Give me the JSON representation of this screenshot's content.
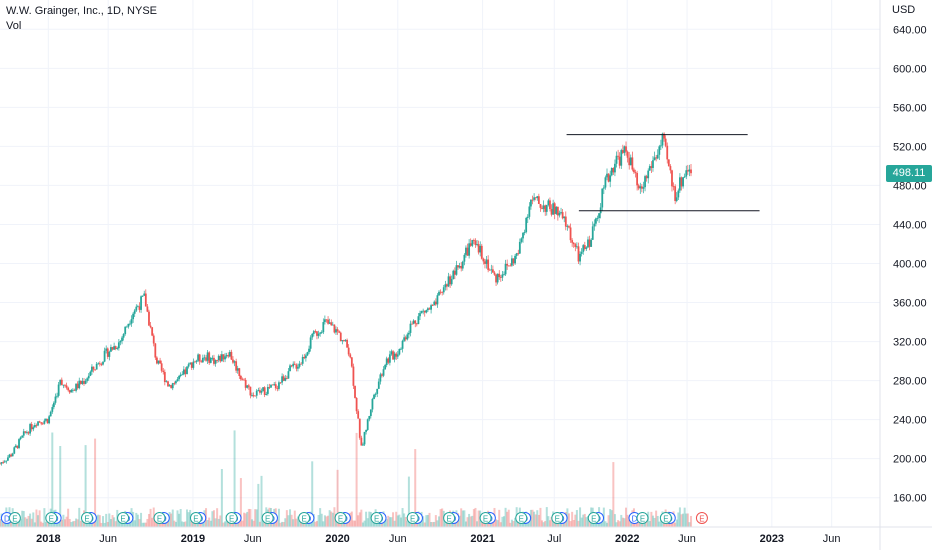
{
  "legend": {
    "symbol": "W.W. Grainger, Inc., 1D, NYSE",
    "volume_label": "Vol"
  },
  "price_axis": {
    "currency": "USD",
    "last_price": "498.11",
    "last_price_color": "#26a69a"
  },
  "colors": {
    "up": "#26a69a",
    "down": "#ef5350",
    "grid": "#f0f3fa",
    "text": "#131722"
  },
  "chart_data": {
    "type": "candlestick",
    "y_ticks": [
      160,
      200,
      240,
      280,
      320,
      360,
      400,
      440,
      480,
      520,
      560,
      600,
      640
    ],
    "y_tick_labels": [
      "160.00",
      "200.00",
      "240.00",
      "280.00",
      "320.00",
      "360.00",
      "400.00",
      "440.00",
      "480.00",
      "520.00",
      "560.00",
      "600.00",
      "640.00"
    ],
    "ylim": [
      130,
      670
    ],
    "x_ticks": [
      {
        "label": "2018",
        "date": "2018-01"
      },
      {
        "label": "Jun",
        "date": "2018-06"
      },
      {
        "label": "2019",
        "date": "2019-01"
      },
      {
        "label": "Jun",
        "date": "2019-06"
      },
      {
        "label": "2020",
        "date": "2020-01"
      },
      {
        "label": "Jun",
        "date": "2020-06"
      },
      {
        "label": "2021",
        "date": "2021-01"
      },
      {
        "label": "Jul",
        "date": "2021-07"
      },
      {
        "label": "2022",
        "date": "2022-01"
      },
      {
        "label": "Jun",
        "date": "2022-06"
      },
      {
        "label": "2023",
        "date": "2023-01"
      },
      {
        "label": "Jun",
        "date": "2023-06"
      }
    ],
    "price_path": [
      [
        "2017-09",
        195
      ],
      [
        "2017-10",
        205
      ],
      [
        "2017-11",
        225
      ],
      [
        "2017-12",
        238
      ],
      [
        "2018-01",
        240
      ],
      [
        "2018-02",
        280
      ],
      [
        "2018-03",
        270
      ],
      [
        "2018-04",
        280
      ],
      [
        "2018-05",
        295
      ],
      [
        "2018-06",
        310
      ],
      [
        "2018-07",
        320
      ],
      [
        "2018-08",
        350
      ],
      [
        "2018-09",
        365
      ],
      [
        "2018-10",
        300
      ],
      [
        "2018-11",
        275
      ],
      [
        "2018-12",
        282
      ],
      [
        "2019-01",
        300
      ],
      [
        "2019-02",
        305
      ],
      [
        "2019-03",
        300
      ],
      [
        "2019-04",
        310
      ],
      [
        "2019-05",
        285
      ],
      [
        "2019-06",
        265
      ],
      [
        "2019-07",
        270
      ],
      [
        "2019-08",
        275
      ],
      [
        "2019-09",
        290
      ],
      [
        "2019-10",
        300
      ],
      [
        "2019-11",
        325
      ],
      [
        "2019-12",
        340
      ],
      [
        "2020-01",
        330
      ],
      [
        "2020-02",
        310
      ],
      [
        "2020-03",
        210
      ],
      [
        "2020-04",
        265
      ],
      [
        "2020-05",
        300
      ],
      [
        "2020-06",
        310
      ],
      [
        "2020-07",
        335
      ],
      [
        "2020-08",
        350
      ],
      [
        "2020-09",
        355
      ],
      [
        "2020-10",
        380
      ],
      [
        "2020-11",
        395
      ],
      [
        "2020-12",
        420
      ],
      [
        "2021-01",
        410
      ],
      [
        "2021-02",
        385
      ],
      [
        "2021-03",
        395
      ],
      [
        "2021-04",
        410
      ],
      [
        "2021-05",
        465
      ],
      [
        "2021-06",
        460
      ],
      [
        "2021-07",
        455
      ],
      [
        "2021-08",
        440
      ],
      [
        "2021-09",
        405
      ],
      [
        "2021-10",
        425
      ],
      [
        "2021-11",
        475
      ],
      [
        "2021-12",
        505
      ],
      [
        "2022-01",
        515
      ],
      [
        "2022-02",
        470
      ],
      [
        "2022-03",
        500
      ],
      [
        "2022-04",
        525
      ],
      [
        "2022-05",
        470
      ],
      [
        "2022-06",
        498
      ]
    ],
    "last_close": 498.11,
    "annotations": [
      {
        "type": "horizontal_line",
        "price": 532,
        "from": "2021-08",
        "to": "2022-11"
      },
      {
        "type": "horizontal_line",
        "price": 454,
        "from": "2021-09",
        "to": "2022-12"
      }
    ],
    "event_markers": {
      "dividends_D": [
        "2017-10",
        "2018-02",
        "2018-05",
        "2018-08",
        "2018-11",
        "2019-02",
        "2019-05",
        "2019-08",
        "2019-11",
        "2020-02",
        "2020-05",
        "2020-08",
        "2020-11",
        "2021-02",
        "2021-05",
        "2021-08",
        "2021-11",
        "2022-02",
        "2022-05"
      ],
      "earnings_E": [
        "2017-10",
        "2018-01",
        "2018-04",
        "2018-07",
        "2018-10",
        "2019-01",
        "2019-04",
        "2019-07",
        "2019-10",
        "2020-01",
        "2020-04",
        "2020-07",
        "2020-10",
        "2021-01",
        "2021-04",
        "2021-07",
        "2021-10",
        "2022-02",
        "2022-04",
        "2022-07"
      ]
    }
  }
}
